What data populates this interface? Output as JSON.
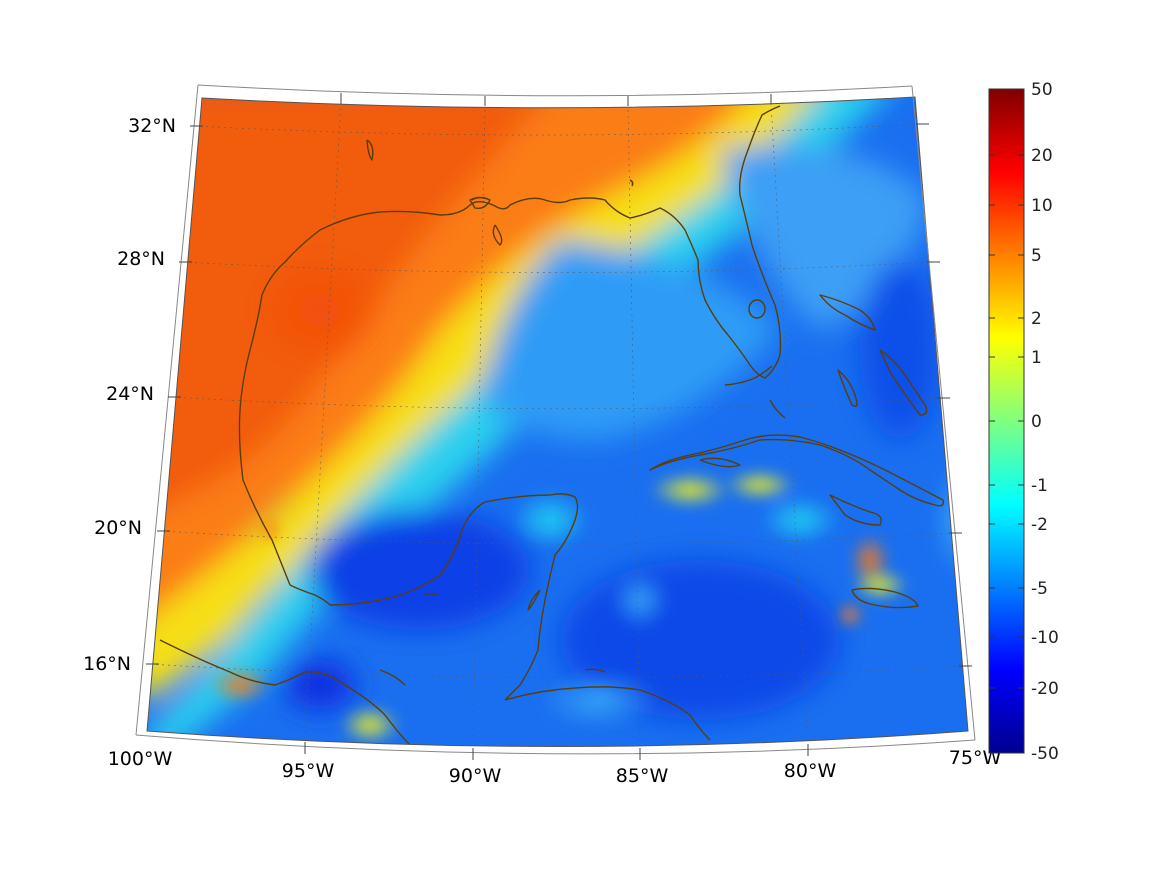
{
  "map": {
    "projection": "conic",
    "grid": true,
    "coast_color": "#5a3e0a",
    "lon_labels": [
      "100°W",
      "95°W",
      "90°W",
      "85°W",
      "80°W",
      "75°W"
    ],
    "lat_labels": [
      "32°N",
      "28°N",
      "24°N",
      "20°N",
      "16°N"
    ]
  },
  "colorbar": {
    "colormap": "jet",
    "tick_labels": [
      "50",
      "20",
      "10",
      "5",
      "2",
      "1",
      "0",
      "-1",
      "-2",
      "-5",
      "-10",
      "-20",
      "-50"
    ]
  }
}
